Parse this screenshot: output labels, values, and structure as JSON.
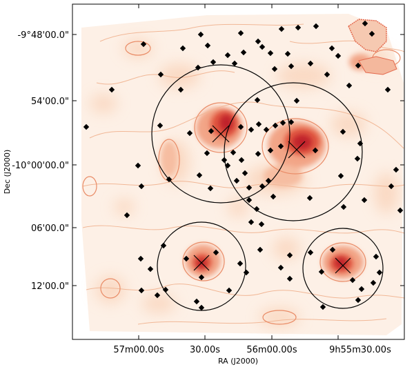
{
  "chart_data": {
    "type": "map",
    "description": "Smoothed sky intensity map with contours, source markers and circular fields",
    "xlabel": "RA (J2000)",
    "ylabel": "Dec (J2000)",
    "x_ticks": [
      "57m00.00s",
      "30.00s",
      "56m00.00s",
      "9h55m30.00s"
    ],
    "y_ticks": [
      "-9°48'00.0\"",
      "54'00.0\"",
      "-10°00'00.0\"",
      "06'00.0\"",
      "12'00.0\""
    ],
    "fields": [
      {
        "name": "field-top-left",
        "center_x": 0.332,
        "center_y": 0.583,
        "radius": 0.235
      },
      {
        "name": "field-top-right",
        "center_x": 0.619,
        "center_y": 0.552,
        "radius": 0.235
      },
      {
        "name": "field-bottom-left",
        "center_x": 0.381,
        "center_y": 0.229,
        "radius": 0.137
      },
      {
        "name": "field-bottom-right",
        "center_x": 0.793,
        "center_y": 0.225,
        "radius": 0.125
      }
    ],
    "peaks": [
      {
        "name": "peak-1",
        "x": 0.339,
        "y": 0.608,
        "strength": 0.95
      },
      {
        "name": "peak-2",
        "x": 0.643,
        "y": 0.557,
        "strength": 1.0
      },
      {
        "name": "peak-3",
        "x": 0.381,
        "y": 0.225,
        "strength": 0.9
      },
      {
        "name": "peak-4",
        "x": 0.793,
        "y": 0.229,
        "strength": 0.95
      }
    ]
  }
}
